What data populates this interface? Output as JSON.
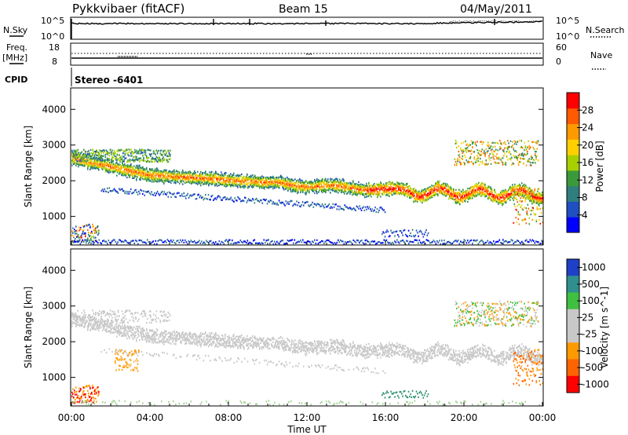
{
  "header": {
    "radar": "Pykkvibaer (fitACF)",
    "beam": "Beam 15",
    "date": "04/May/2011"
  },
  "top_panels": {
    "nsky_label": "N.Sky",
    "nsky_ticks": [
      "10^5",
      "10^0"
    ],
    "nsearch_label": "N.Search",
    "nsearch_ticks": [
      "10^5",
      "10^0"
    ],
    "freq_label": "Freq.",
    "freq_unit": "[MHz]",
    "freq_ticks": [
      "18",
      "8"
    ],
    "nave_label": "Nave",
    "nave_ticks": [
      "60",
      "0"
    ],
    "cpid_label": "CPID",
    "cpid_value": "Stereo -6401"
  },
  "colors": {
    "power_scale": [
      "#0000ff",
      "#1f4fc0",
      "#2f7f7f",
      "#3a9a3a",
      "#a8d000",
      "#ffd000",
      "#ff9a00",
      "#ff5a00",
      "#ff0000"
    ],
    "velocity_scale": [
      "#1e40c8",
      "#2f8f8f",
      "#40c040",
      "#c8c8c8",
      "#c8c8c8",
      "#ff9a00",
      "#ff6400",
      "#ff0000"
    ]
  },
  "chart_data": [
    {
      "type": "heatmap",
      "name": "power",
      "ylabel": "Slant Range [km]",
      "y_ticks": [
        "1000",
        "2000",
        "3000",
        "4000"
      ],
      "ylim": [
        200,
        4600
      ],
      "xlim": [
        "00:00",
        "24:00"
      ],
      "colorbar_label": "Power [dB]",
      "colorbar_ticks": [
        "4",
        "8",
        "12",
        "16",
        "20",
        "24",
        "28"
      ],
      "colorbar_range": [
        0,
        32
      ]
    },
    {
      "type": "heatmap",
      "name": "velocity",
      "ylabel": "Slant Range [km]",
      "y_ticks": [
        "1000",
        "2000",
        "3000",
        "4000"
      ],
      "ylim": [
        200,
        4600
      ],
      "xlim": [
        "00:00",
        "24:00"
      ],
      "colorbar_label": "Velocity [m s^-1]",
      "colorbar_ticks": [
        "1000",
        "500",
        "100",
        "25",
        "-25",
        "-100",
        "-500",
        "-1000"
      ]
    }
  ],
  "x_axis": {
    "ticks": [
      "00:00",
      "04:00",
      "08:00",
      "12:00",
      "16:00",
      "20:00",
      "00:00"
    ],
    "label": "Time UT"
  }
}
